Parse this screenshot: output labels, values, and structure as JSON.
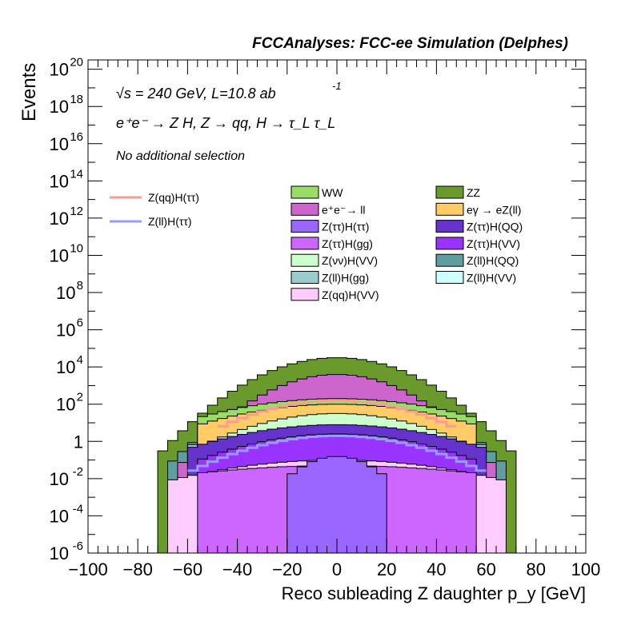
{
  "chart_data": {
    "type": "area",
    "title": "FCCAnalyses: FCC-ee Simulation (Delphes)",
    "annotations": {
      "energy": "√s = 240 GeV, L=10.8 ab",
      "energy_exp": "-1",
      "process": "e⁺e⁻ → Z H, Z → qq, H → τ_L τ_L",
      "selection": "No additional selection"
    },
    "xlabel": "Reco subleading Z daughter p_y [GeV]",
    "ylabel": "Events",
    "xlim": [
      -100,
      100
    ],
    "ylim_log10": [
      -6,
      20.5
    ],
    "log_y": true,
    "x_ticks": [
      "−100",
      "−80",
      "−60",
      "−40",
      "−20",
      "0",
      "20",
      "40",
      "60",
      "80",
      "100"
    ],
    "y_ticks": [
      {
        "base": "10",
        "exp": "20",
        "v": 20
      },
      {
        "base": "10",
        "exp": "18",
        "v": 18
      },
      {
        "base": "10",
        "exp": "16",
        "v": 16
      },
      {
        "base": "10",
        "exp": "14",
        "v": 14
      },
      {
        "base": "10",
        "exp": "12",
        "v": 12
      },
      {
        "base": "10",
        "exp": "10",
        "v": 10
      },
      {
        "base": "10",
        "exp": "8",
        "v": 8
      },
      {
        "base": "10",
        "exp": "6",
        "v": 6
      },
      {
        "base": "10",
        "exp": "4",
        "v": 4
      },
      {
        "base": "10",
        "exp": "2",
        "v": 2
      },
      {
        "base": "1",
        "exp": "",
        "v": 0
      },
      {
        "base": "10",
        "exp": "-2",
        "v": -2
      },
      {
        "base": "10",
        "exp": "-4",
        "v": -4
      },
      {
        "base": "10",
        "exp": "-6",
        "v": -6
      }
    ],
    "stack_log10_tops": [
      {
        "name": "ZZ",
        "color": "#6a9a2c",
        "half_width": 72,
        "center": 4.5,
        "edge": -0.8
      },
      {
        "name": "Z(ll)H(QQ)",
        "color": "#5f9ea0",
        "half_width": 70,
        "center": 3.3,
        "edge": -1.6
      },
      {
        "name": "Z(ll)H(VV)",
        "color": "#ccffff",
        "half_width": 70,
        "center": 2.7,
        "edge": -2.8
      },
      {
        "name": "e⁺e⁻→ ll",
        "color": "#cc66cc",
        "half_width": 65,
        "center": 3.6,
        "edge": -1.6
      },
      {
        "name": "Z(ll)H(gg)",
        "color": "#99cccc",
        "half_width": 62,
        "center": 2.1,
        "edge": -0.5
      },
      {
        "name": "WW",
        "color": "#99dd66",
        "half_width": 55,
        "center": 2.3,
        "edge": 1.3
      },
      {
        "name": "eγ → eZ(ll)",
        "color": "#ffcc66",
        "half_width": 55,
        "center": 2.0,
        "edge": 0.9
      },
      {
        "name": "Z(νν)H(VV)",
        "color": "#ccffcc",
        "half_width": 55,
        "center": 1.5,
        "edge": -0.3
      },
      {
        "name": "Z(ττ)H(QQ)",
        "color": "#6633cc",
        "half_width": 60,
        "center": 0.9,
        "edge": -0.4
      },
      {
        "name": "Z(ττ)H(VV)",
        "color": "#9933ff",
        "half_width": 55,
        "center": 0.4,
        "edge": -1.0
      },
      {
        "name": "Z(qq)H(VV)",
        "color": "#ffccff",
        "half_width": 70,
        "center": -1.0,
        "edge": -2.2
      },
      {
        "name": "Z(ττ)H(gg)",
        "color": "#cc66ff",
        "half_width": 55,
        "center": -1.3,
        "edge": -1.7
      },
      {
        "name": "Z(ττ)H(ττ)",
        "color": "#9966ff",
        "half_width": 22,
        "center": -0.8,
        "edge": -2.2
      }
    ],
    "lines": [
      {
        "name": "Z(qq)H(ττ)",
        "color": "#ff9999",
        "half_width": 48,
        "center": 2.2,
        "edge": 0.7
      },
      {
        "name": "Z(ll)H(ττ)",
        "color": "#9999ff",
        "half_width": 60,
        "center": 0.3,
        "edge": -1.7
      }
    ]
  },
  "legend_lines": [
    {
      "label": "Z(qq)H(ττ)",
      "color": "#ff9999"
    },
    {
      "label": "Z(ll)H(ττ)",
      "color": "#9999ff"
    }
  ],
  "legend_fills": [
    {
      "label": "WW",
      "color": "#99dd66"
    },
    {
      "label": "ZZ",
      "color": "#6a9a2c"
    },
    {
      "label": "e⁺e⁻→ ll",
      "color": "#cc66cc"
    },
    {
      "label": "eγ → eZ(ll)",
      "color": "#ffcc66"
    },
    {
      "label": "Z(ττ)H(ττ)",
      "color": "#9966ff"
    },
    {
      "label": "Z(ττ)H(QQ)",
      "color": "#6633cc"
    },
    {
      "label": "Z(ττ)H(gg)",
      "color": "#cc66ff"
    },
    {
      "label": "Z(ττ)H(VV)",
      "color": "#9933ff"
    },
    {
      "label": "Z(νν)H(VV)",
      "color": "#ccffcc"
    },
    {
      "label": "Z(ll)H(QQ)",
      "color": "#5f9ea0"
    },
    {
      "label": "Z(ll)H(gg)",
      "color": "#99cccc"
    },
    {
      "label": "Z(ll)H(VV)",
      "color": "#ccffff"
    },
    {
      "label": "Z(qq)H(VV)",
      "color": "#ffccff"
    }
  ]
}
